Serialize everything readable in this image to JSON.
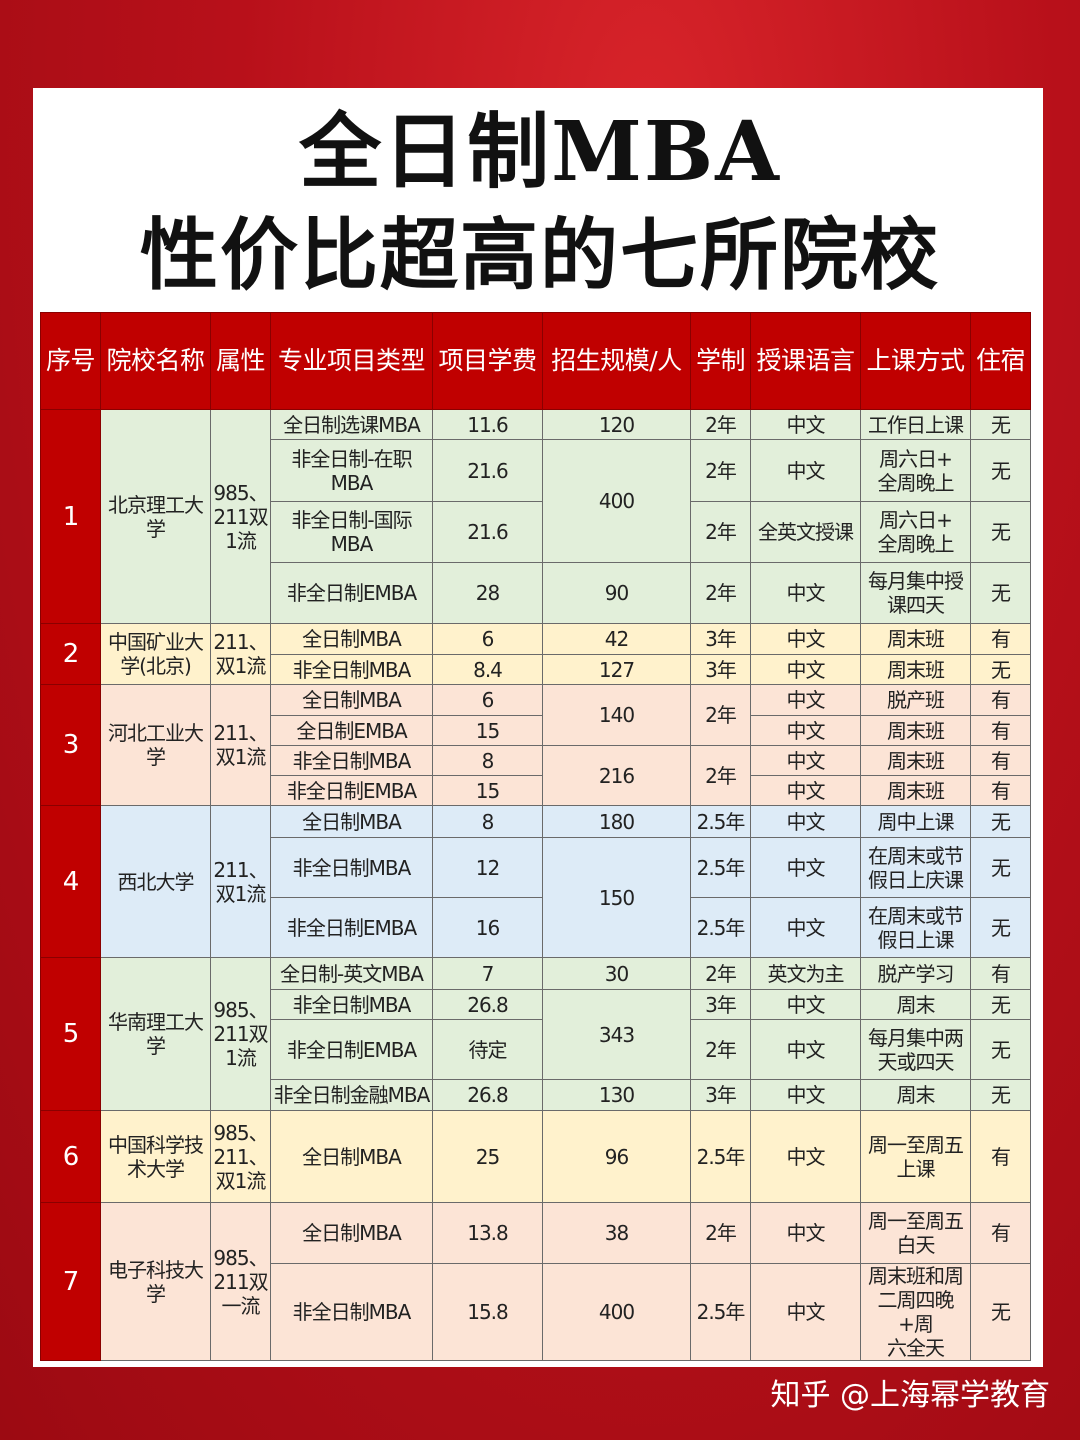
{
  "title": {
    "line1": "全日制MBA",
    "line2": "性价比超高的七所院校"
  },
  "colors": {
    "header": "#c00000",
    "green": "#e2efda",
    "yellow": "#fff2cc",
    "pink": "#fce4d6",
    "blue": "#ddebf7"
  },
  "headers": [
    "序号",
    "院校名称",
    "属性",
    "专业项目类型",
    "项目学费",
    "招生规模/人",
    "学制",
    "授课语言",
    "上课方式",
    "住宿"
  ],
  "groups": [
    {
      "color": "green",
      "rows": [
        [
          {
            "t": "1",
            "rs": 4
          },
          {
            "t": "北京理工大\n学",
            "rs": 4
          },
          {
            "t": "985、\n211双\n1流",
            "rs": 4
          },
          {
            "t": "全日制选课MBA"
          },
          {
            "t": "11.6"
          },
          {
            "t": "120"
          },
          {
            "t": "2年"
          },
          {
            "t": "中文"
          },
          {
            "t": "工作日上课"
          },
          {
            "t": "无"
          }
        ],
        [
          {
            "t": "非全日制-在职MBA"
          },
          {
            "t": "21.6"
          },
          {
            "t": "400",
            "rs": 2
          },
          {
            "t": "2年"
          },
          {
            "t": "中文"
          },
          {
            "t": "周六日+\n全周晚上"
          },
          {
            "t": "无"
          }
        ],
        [
          {
            "t": "非全日制-国际MBA"
          },
          {
            "t": "21.6"
          },
          {
            "t": "2年"
          },
          {
            "t": "全英文授课"
          },
          {
            "t": "周六日+\n全周晚上"
          },
          {
            "t": "无"
          }
        ],
        [
          {
            "t": "非全日制EMBA"
          },
          {
            "t": "28"
          },
          {
            "t": "90"
          },
          {
            "t": "2年"
          },
          {
            "t": "中文"
          },
          {
            "t": "每月集中授\n课四天"
          },
          {
            "t": "无"
          }
        ]
      ]
    },
    {
      "color": "yellow",
      "rows": [
        [
          {
            "t": "2",
            "rs": 2
          },
          {
            "t": "中国矿业大\n学(北京)",
            "rs": 2
          },
          {
            "t": "211、\n双1流",
            "rs": 2
          },
          {
            "t": "全日制MBA"
          },
          {
            "t": "6"
          },
          {
            "t": "42"
          },
          {
            "t": "3年"
          },
          {
            "t": "中文"
          },
          {
            "t": "周末班"
          },
          {
            "t": "有"
          }
        ],
        [
          {
            "t": "非全日制MBA"
          },
          {
            "t": "8.4"
          },
          {
            "t": "127"
          },
          {
            "t": "3年"
          },
          {
            "t": "中文"
          },
          {
            "t": "周末班"
          },
          {
            "t": "无"
          }
        ]
      ]
    },
    {
      "color": "pink",
      "rows": [
        [
          {
            "t": "3",
            "rs": 4
          },
          {
            "t": "河北工业大\n学",
            "rs": 4
          },
          {
            "t": "211、\n双1流",
            "rs": 4
          },
          {
            "t": "全日制MBA"
          },
          {
            "t": "6"
          },
          {
            "t": "140",
            "rs": 2
          },
          {
            "t": "2年",
            "rs": 2
          },
          {
            "t": "中文"
          },
          {
            "t": "脱产班"
          },
          {
            "t": "有"
          }
        ],
        [
          {
            "t": "全日制EMBA"
          },
          {
            "t": "15"
          },
          {
            "t": "中文"
          },
          {
            "t": "周末班"
          },
          {
            "t": "有"
          }
        ],
        [
          {
            "t": "非全日制MBA"
          },
          {
            "t": "8"
          },
          {
            "t": "216",
            "rs": 2
          },
          {
            "t": "2年",
            "rs": 2
          },
          {
            "t": "中文"
          },
          {
            "t": "周末班"
          },
          {
            "t": "有"
          }
        ],
        [
          {
            "t": "非全日制EMBA"
          },
          {
            "t": "15"
          },
          {
            "t": "中文"
          },
          {
            "t": "周末班"
          },
          {
            "t": "有"
          }
        ]
      ]
    },
    {
      "color": "blue",
      "rows": [
        [
          {
            "t": "4",
            "rs": 3
          },
          {
            "t": "西北大学",
            "rs": 3
          },
          {
            "t": "211、\n双1流",
            "rs": 3
          },
          {
            "t": "全日制MBA"
          },
          {
            "t": "8"
          },
          {
            "t": "180"
          },
          {
            "t": "2.5年"
          },
          {
            "t": "中文"
          },
          {
            "t": "周中上课"
          },
          {
            "t": "无"
          }
        ],
        [
          {
            "t": "非全日制MBA"
          },
          {
            "t": "12"
          },
          {
            "t": "150",
            "rs": 2
          },
          {
            "t": "2.5年"
          },
          {
            "t": "中文"
          },
          {
            "t": "在周末或节\n假日上庆课"
          },
          {
            "t": "无"
          }
        ],
        [
          {
            "t": "非全日制EMBA"
          },
          {
            "t": "16"
          },
          {
            "t": "2.5年"
          },
          {
            "t": "中文"
          },
          {
            "t": "在周末或节\n假日上课"
          },
          {
            "t": "无"
          }
        ]
      ]
    },
    {
      "color": "green",
      "rows": [
        [
          {
            "t": "5",
            "rs": 4
          },
          {
            "t": "华南理工大\n学",
            "rs": 4
          },
          {
            "t": "985、\n211双\n1流",
            "rs": 4
          },
          {
            "t": "全日制-英文MBA"
          },
          {
            "t": "7"
          },
          {
            "t": "30"
          },
          {
            "t": "2年"
          },
          {
            "t": "英文为主"
          },
          {
            "t": "脱产学习"
          },
          {
            "t": "有"
          }
        ],
        [
          {
            "t": "非全日制MBA"
          },
          {
            "t": "26.8"
          },
          {
            "t": "343",
            "rs": 2
          },
          {
            "t": "3年"
          },
          {
            "t": "中文"
          },
          {
            "t": "周末"
          },
          {
            "t": "无"
          }
        ],
        [
          {
            "t": "非全日制EMBA"
          },
          {
            "t": "待定"
          },
          {
            "t": "2年"
          },
          {
            "t": "中文"
          },
          {
            "t": "每月集中两\n天或四天"
          },
          {
            "t": "无"
          }
        ],
        [
          {
            "t": "非全日制金融MBA"
          },
          {
            "t": "26.8"
          },
          {
            "t": "130"
          },
          {
            "t": "3年"
          },
          {
            "t": "中文"
          },
          {
            "t": "周末"
          },
          {
            "t": "无"
          }
        ]
      ]
    },
    {
      "color": "yellow",
      "rows": [
        [
          {
            "t": "6"
          },
          {
            "t": "中国科学技\n术大学"
          },
          {
            "t": "985、\n211、\n双1流"
          },
          {
            "t": "全日制MBA"
          },
          {
            "t": "25"
          },
          {
            "t": "96"
          },
          {
            "t": "2.5年"
          },
          {
            "t": "中文"
          },
          {
            "t": "周一至周五\n上课"
          },
          {
            "t": "有"
          }
        ]
      ]
    },
    {
      "color": "pink",
      "rows": [
        [
          {
            "t": "7",
            "rs": 2
          },
          {
            "t": "电子科技大\n学",
            "rs": 2
          },
          {
            "t": "985、\n211双\n一流",
            "rs": 2
          },
          {
            "t": "全日制MBA"
          },
          {
            "t": "13.8"
          },
          {
            "t": "38"
          },
          {
            "t": "2年"
          },
          {
            "t": "中文"
          },
          {
            "t": "周一至周五\n白天"
          },
          {
            "t": "有"
          }
        ],
        [
          {
            "t": "非全日制MBA"
          },
          {
            "t": "15.8"
          },
          {
            "t": "400"
          },
          {
            "t": "2.5年"
          },
          {
            "t": "中文"
          },
          {
            "t": "周末班和周\n二周四晚+周\n六全天"
          },
          {
            "t": "无"
          }
        ]
      ]
    }
  ],
  "footer": "知乎 @上海幂学教育"
}
